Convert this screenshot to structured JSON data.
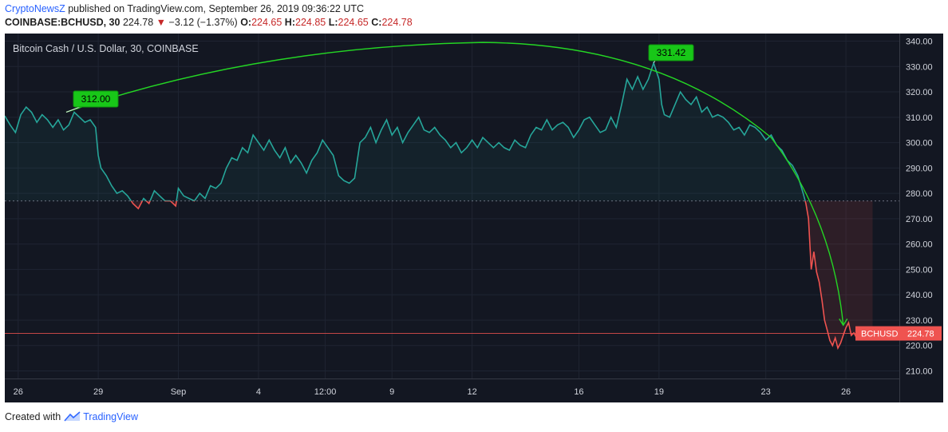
{
  "header": {
    "author": "CryptoNewsZ",
    "published": "published on TradingView.com, September 26, 2019 09:36:22 UTC",
    "symbol": "COINBASE:BCHUSD, 30",
    "last": "224.78",
    "change": "−3.12 (−1.37%)",
    "o_label": "O:",
    "o_value": "224.65",
    "h_label": "H:",
    "h_value": "224.85",
    "l_label": "L:",
    "l_value": "224.65",
    "c_label": "C:",
    "c_value": "224.78"
  },
  "footer": {
    "created_with": "Created with",
    "brand": "TradingView"
  },
  "colors": {
    "bg": "#131722",
    "up": "#26a69a",
    "down": "#ef5350",
    "trend": "#24d624",
    "callout": "#18c718",
    "text": "#d1d4dc"
  },
  "chart_data": {
    "type": "line",
    "title": "Bitcoin Cash / U.S. Dollar, 30, COINBASE",
    "xlabel": "",
    "ylabel": "",
    "ylim": [
      207,
      343
    ],
    "y_ticks": [
      210,
      220,
      230,
      240,
      250,
      260,
      270,
      280,
      290,
      300,
      310,
      320,
      330,
      340
    ],
    "x_ticks": [
      {
        "x": 0,
        "label": "26"
      },
      {
        "x": 3,
        "label": "29"
      },
      {
        "x": 6,
        "label": "Sep"
      },
      {
        "x": 9,
        "label": "4"
      },
      {
        "x": 11.5,
        "label": "12:00"
      },
      {
        "x": 14,
        "label": "9"
      },
      {
        "x": 17,
        "label": "12"
      },
      {
        "x": 21,
        "label": "16"
      },
      {
        "x": 24,
        "label": "19"
      },
      {
        "x": 28,
        "label": "23"
      },
      {
        "x": 31,
        "label": "26"
      }
    ],
    "xlim": [
      -0.5,
      33
    ],
    "reference_price": 277,
    "current_price": 224.78,
    "price_label": {
      "symbol": "BCHUSD",
      "value": "224.78"
    },
    "series": [
      {
        "values": [
          [
            -0.5,
            310.5
          ],
          [
            -0.3,
            307
          ],
          [
            -0.1,
            304
          ],
          [
            0.1,
            311
          ],
          [
            0.3,
            314
          ],
          [
            0.5,
            312
          ],
          [
            0.7,
            308
          ],
          [
            0.9,
            311
          ],
          [
            1.1,
            309
          ],
          [
            1.3,
            306
          ],
          [
            1.5,
            309
          ],
          [
            1.7,
            305
          ],
          [
            1.9,
            307
          ],
          [
            2.1,
            312
          ],
          [
            2.3,
            310
          ],
          [
            2.5,
            308
          ],
          [
            2.7,
            309
          ],
          [
            2.9,
            306
          ],
          [
            3.0,
            295
          ],
          [
            3.1,
            290
          ],
          [
            3.3,
            287
          ],
          [
            3.5,
            283
          ],
          [
            3.7,
            280
          ],
          [
            3.9,
            281
          ],
          [
            4.1,
            279
          ],
          [
            4.3,
            276
          ],
          [
            4.5,
            274
          ],
          [
            4.7,
            278
          ],
          [
            4.9,
            276
          ],
          [
            5.1,
            281
          ],
          [
            5.3,
            279
          ],
          [
            5.5,
            277
          ],
          [
            5.7,
            277
          ],
          [
            5.9,
            275
          ],
          [
            6.0,
            282
          ],
          [
            6.2,
            279
          ],
          [
            6.4,
            278
          ],
          [
            6.6,
            277
          ],
          [
            6.8,
            280
          ],
          [
            7.0,
            278
          ],
          [
            7.2,
            283
          ],
          [
            7.4,
            282
          ],
          [
            7.6,
            284
          ],
          [
            7.8,
            290
          ],
          [
            8.0,
            294
          ],
          [
            8.2,
            293
          ],
          [
            8.4,
            298
          ],
          [
            8.6,
            296
          ],
          [
            8.8,
            303
          ],
          [
            9.0,
            300
          ],
          [
            9.2,
            297
          ],
          [
            9.4,
            301
          ],
          [
            9.6,
            297
          ],
          [
            9.8,
            294
          ],
          [
            10.0,
            298
          ],
          [
            10.2,
            292
          ],
          [
            10.4,
            295
          ],
          [
            10.6,
            292
          ],
          [
            10.8,
            288
          ],
          [
            11.0,
            293
          ],
          [
            11.2,
            296
          ],
          [
            11.4,
            301
          ],
          [
            11.6,
            298
          ],
          [
            11.8,
            295
          ],
          [
            12.0,
            287
          ],
          [
            12.2,
            285
          ],
          [
            12.4,
            284
          ],
          [
            12.6,
            286
          ],
          [
            12.8,
            300
          ],
          [
            13.0,
            302
          ],
          [
            13.2,
            306
          ],
          [
            13.4,
            300
          ],
          [
            13.6,
            305
          ],
          [
            13.8,
            309
          ],
          [
            14.0,
            303
          ],
          [
            14.2,
            306
          ],
          [
            14.4,
            300
          ],
          [
            14.6,
            304
          ],
          [
            14.8,
            307
          ],
          [
            15.0,
            310
          ],
          [
            15.2,
            305
          ],
          [
            15.4,
            304
          ],
          [
            15.6,
            306
          ],
          [
            15.8,
            303
          ],
          [
            16.0,
            301
          ],
          [
            16.2,
            298
          ],
          [
            16.4,
            300
          ],
          [
            16.6,
            296
          ],
          [
            16.8,
            298
          ],
          [
            17.0,
            301
          ],
          [
            17.2,
            298
          ],
          [
            17.4,
            302
          ],
          [
            17.6,
            300
          ],
          [
            17.8,
            298
          ],
          [
            18.0,
            300
          ],
          [
            18.2,
            298
          ],
          [
            18.4,
            297
          ],
          [
            18.6,
            301
          ],
          [
            18.8,
            299
          ],
          [
            19.0,
            298
          ],
          [
            19.2,
            303
          ],
          [
            19.4,
            306
          ],
          [
            19.6,
            305
          ],
          [
            19.8,
            309
          ],
          [
            20.0,
            305
          ],
          [
            20.2,
            307
          ],
          [
            20.4,
            308
          ],
          [
            20.6,
            306
          ],
          [
            20.8,
            302
          ],
          [
            21.0,
            305
          ],
          [
            21.2,
            309
          ],
          [
            21.4,
            310
          ],
          [
            21.6,
            307
          ],
          [
            21.8,
            304
          ],
          [
            22.0,
            305
          ],
          [
            22.2,
            310
          ],
          [
            22.4,
            306
          ],
          [
            22.6,
            315
          ],
          [
            22.8,
            325
          ],
          [
            23.0,
            321
          ],
          [
            23.2,
            326
          ],
          [
            23.4,
            321
          ],
          [
            23.6,
            325
          ],
          [
            23.8,
            331.4
          ],
          [
            24.0,
            325
          ],
          [
            24.1,
            315
          ],
          [
            24.2,
            311
          ],
          [
            24.4,
            310
          ],
          [
            24.6,
            315
          ],
          [
            24.8,
            320
          ],
          [
            25.0,
            317
          ],
          [
            25.2,
            315
          ],
          [
            25.4,
            318
          ],
          [
            25.6,
            312
          ],
          [
            25.8,
            314
          ],
          [
            26.0,
            310
          ],
          [
            26.2,
            311
          ],
          [
            26.4,
            310
          ],
          [
            26.6,
            308
          ],
          [
            26.8,
            305
          ],
          [
            27.0,
            306
          ],
          [
            27.2,
            303
          ],
          [
            27.4,
            307
          ],
          [
            27.6,
            306
          ],
          [
            27.8,
            304
          ],
          [
            28.0,
            301
          ],
          [
            28.2,
            303
          ],
          [
            28.4,
            299
          ],
          [
            28.6,
            297
          ],
          [
            28.8,
            293
          ],
          [
            29.0,
            291
          ],
          [
            29.2,
            287
          ],
          [
            29.4,
            280
          ],
          [
            29.5,
            276
          ],
          [
            29.6,
            270
          ],
          [
            29.7,
            250
          ],
          [
            29.8,
            257
          ],
          [
            29.9,
            249
          ],
          [
            30.0,
            245
          ],
          [
            30.1,
            238
          ],
          [
            30.2,
            230
          ],
          [
            30.3,
            226
          ],
          [
            30.4,
            222
          ],
          [
            30.5,
            220
          ],
          [
            30.6,
            223
          ],
          [
            30.7,
            219
          ],
          [
            30.8,
            221
          ],
          [
            30.9,
            224
          ],
          [
            31.0,
            227
          ],
          [
            31.1,
            229
          ],
          [
            31.2,
            224
          ],
          [
            31.3,
            225
          ],
          [
            31.4,
            223
          ],
          [
            31.6,
            225
          ],
          [
            31.8,
            224.5
          ],
          [
            32.0,
            224.78
          ]
        ]
      }
    ],
    "annotations": [
      {
        "label": "312.00",
        "x": 1.8,
        "y": 312.0
      },
      {
        "label": "331.42",
        "x": 23.8,
        "y": 331.42
      }
    ]
  }
}
